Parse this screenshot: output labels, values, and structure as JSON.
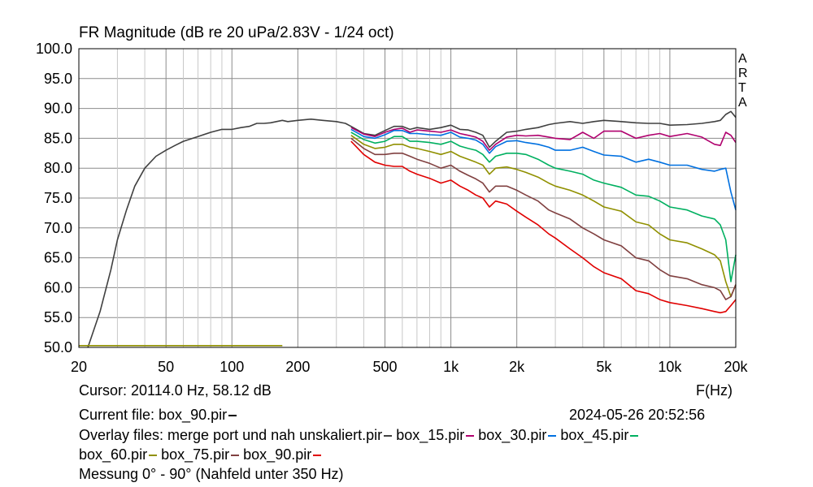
{
  "app_label": [
    "A",
    "R",
    "T",
    "A"
  ],
  "cursor_text": "Cursor: 20114.0 Hz, 58.12 dB",
  "x_unit": "F(Hz)",
  "current_file": {
    "label": "Current file: box_90.pir",
    "color": "#000000"
  },
  "timestamp": "2024-05-26  20:52:56",
  "overlay_label": "Overlay files: ",
  "overlays": [
    {
      "name": "merge port und nah unskaliert.pir",
      "color": "#404040"
    },
    {
      "name": "box_15.pir",
      "color": "#b0006e"
    },
    {
      "name": "box_30.pir",
      "color": "#0070e0"
    },
    {
      "name": "box_45.pir",
      "color": "#00b060"
    },
    {
      "name": "box_60.pir",
      "color": "#909000"
    },
    {
      "name": "box_75.pir",
      "color": "#804040"
    },
    {
      "name": "box_90.pir",
      "color": "#e00000"
    }
  ],
  "note": "Messung 0° - 90° (Nahfeld unter 350 Hz)",
  "chart_data": {
    "type": "line",
    "title": "FR Magnitude (dB re 20 uPa/2.83V - 1/24 oct)",
    "xlabel": "F(Hz)",
    "ylabel": "",
    "x_scale": "log",
    "xlim": [
      20,
      20000
    ],
    "ylim": [
      50,
      100
    ],
    "grid": true,
    "x_ticks": [
      {
        "value": 20,
        "label": "20"
      },
      {
        "value": 50,
        "label": "50"
      },
      {
        "value": 100,
        "label": "100"
      },
      {
        "value": 200,
        "label": "200"
      },
      {
        "value": 500,
        "label": "500"
      },
      {
        "value": 1000,
        "label": "1k"
      },
      {
        "value": 2000,
        "label": "2k"
      },
      {
        "value": 5000,
        "label": "5k"
      },
      {
        "value": 10000,
        "label": "10k"
      },
      {
        "value": 20000,
        "label": "20k"
      }
    ],
    "y_ticks": [
      {
        "value": 100,
        "label": "100.0"
      },
      {
        "value": 95,
        "label": "95.0"
      },
      {
        "value": 90,
        "label": "90.0"
      },
      {
        "value": 85,
        "label": "85.0"
      },
      {
        "value": 80,
        "label": "80.0"
      },
      {
        "value": 75,
        "label": "75.0"
      },
      {
        "value": 70,
        "label": "70.0"
      },
      {
        "value": 65,
        "label": "65.0"
      },
      {
        "value": 60,
        "label": "60.0"
      },
      {
        "value": 55,
        "label": "55.0"
      },
      {
        "value": 50,
        "label": "50.0"
      }
    ],
    "series": [
      {
        "name": "merge port und nah unskaliert.pir",
        "color": "#404040",
        "x": [
          22,
          25,
          28,
          30,
          33,
          36,
          40,
          45,
          50,
          55,
          60,
          70,
          80,
          90,
          100,
          110,
          120,
          130,
          140,
          150,
          170,
          180,
          200,
          230,
          260,
          300,
          330,
          350,
          400,
          450,
          500,
          550,
          600,
          650,
          700,
          800,
          900,
          1000,
          1100,
          1200,
          1300,
          1400,
          1500,
          1600,
          1800,
          2000,
          2200,
          2500,
          2800,
          3000,
          3500,
          4000,
          4500,
          5000,
          6000,
          7000,
          8000,
          9000,
          10000,
          12000,
          14000,
          16000,
          17000,
          18000,
          19000,
          20000
        ],
        "y": [
          50,
          56,
          63,
          68,
          73,
          77,
          80,
          82,
          83,
          83.8,
          84.5,
          85.3,
          86,
          86.5,
          86.5,
          86.8,
          87,
          87.5,
          87.5,
          87.6,
          88,
          87.8,
          88,
          88.2,
          88,
          87.8,
          87.5,
          87,
          85.8,
          85.5,
          86.3,
          87,
          87,
          86.5,
          86.8,
          86.5,
          86.8,
          87.2,
          86.5,
          86.4,
          86,
          85.5,
          83.5,
          84.5,
          86,
          86.2,
          86.5,
          86.8,
          87.3,
          87.5,
          87.8,
          87.5,
          87.8,
          88,
          87.8,
          87.6,
          87.5,
          87.5,
          87.2,
          87.3,
          87.5,
          87.8,
          88,
          89,
          89.5,
          88.5
        ]
      },
      {
        "name": "box_15.pir",
        "color": "#b0006e",
        "x": [
          350,
          400,
          450,
          500,
          550,
          600,
          650,
          700,
          800,
          900,
          1000,
          1100,
          1200,
          1300,
          1400,
          1500,
          1600,
          1800,
          2000,
          2200,
          2500,
          2800,
          3000,
          3500,
          4000,
          4500,
          5000,
          6000,
          7000,
          8000,
          9000,
          10000,
          12000,
          14000,
          16000,
          17000,
          18000,
          19000,
          20000
        ],
        "y": [
          86.8,
          85.7,
          85.3,
          86,
          86.5,
          86.7,
          86,
          86.4,
          86.2,
          86,
          86.4,
          85.8,
          85.5,
          85.2,
          84.5,
          83,
          84,
          85.2,
          85.5,
          85.4,
          85.5,
          85.2,
          85,
          84.8,
          86,
          85,
          86.2,
          86.2,
          85,
          85.5,
          85.8,
          85.3,
          85.8,
          85.2,
          84,
          83.8,
          86,
          85.5,
          84.3
        ]
      },
      {
        "name": "box_30.pir",
        "color": "#0070e0",
        "x": [
          350,
          400,
          450,
          500,
          550,
          600,
          650,
          700,
          800,
          900,
          1000,
          1100,
          1200,
          1300,
          1400,
          1500,
          1600,
          1800,
          2000,
          2200,
          2500,
          2800,
          3000,
          3500,
          4000,
          4500,
          5000,
          6000,
          7000,
          8000,
          9000,
          10000,
          12000,
          14000,
          16000,
          17000,
          18000,
          19000,
          20000
        ],
        "y": [
          86.5,
          85.3,
          85,
          85.6,
          86.3,
          86.3,
          85.8,
          85.8,
          85.6,
          85.5,
          86,
          85.2,
          85,
          84.7,
          84,
          82.5,
          83.6,
          84.5,
          84.6,
          84.3,
          84,
          83.5,
          83,
          83,
          83.5,
          82.8,
          82.2,
          82,
          81,
          81.5,
          81,
          80.5,
          80.5,
          79.8,
          79.5,
          79.8,
          80,
          76,
          73
        ]
      },
      {
        "name": "box_45.pir",
        "color": "#00b060",
        "x": [
          350,
          400,
          450,
          500,
          550,
          600,
          650,
          700,
          800,
          900,
          1000,
          1100,
          1200,
          1300,
          1400,
          1500,
          1600,
          1800,
          2000,
          2200,
          2500,
          2800,
          3000,
          3500,
          4000,
          4500,
          5000,
          6000,
          7000,
          8000,
          9000,
          10000,
          12000,
          14000,
          16000,
          17000,
          18000,
          19000,
          20000
        ],
        "y": [
          86,
          84.8,
          84.2,
          84.5,
          85.3,
          85.3,
          84.5,
          84.5,
          84.3,
          84,
          84.5,
          83.7,
          83.3,
          83,
          82.3,
          81,
          82,
          82.5,
          82.5,
          82.3,
          81.5,
          80.5,
          80,
          79.5,
          79,
          78,
          77.5,
          76.8,
          75.5,
          75.3,
          74.5,
          73.5,
          73,
          72,
          71.5,
          70.5,
          68,
          61,
          65.5
        ]
      },
      {
        "name": "box_60.pir",
        "color": "#909000",
        "x": [
          350,
          400,
          450,
          500,
          550,
          600,
          650,
          700,
          800,
          900,
          1000,
          1100,
          1200,
          1300,
          1400,
          1500,
          1600,
          1800,
          2000,
          2200,
          2500,
          2800,
          3000,
          3500,
          4000,
          4500,
          5000,
          6000,
          7000,
          8000,
          9000,
          10000,
          12000,
          14000,
          16000,
          17000,
          18000,
          19000,
          20000
        ],
        "y": [
          85.5,
          84,
          83.3,
          83.5,
          84,
          84,
          83.5,
          83.3,
          82.8,
          82.3,
          82.8,
          82,
          81.5,
          81,
          80.5,
          79,
          80,
          80.2,
          79.8,
          79.3,
          78.5,
          77.5,
          77,
          76.3,
          75.5,
          74.5,
          73.5,
          72.8,
          71,
          70.5,
          69,
          68,
          67.5,
          66.5,
          65.5,
          64.5,
          61,
          58.5,
          60.5
        ]
      },
      {
        "name": "box_75.pir",
        "color": "#804040",
        "x": [
          350,
          400,
          450,
          500,
          550,
          600,
          650,
          700,
          800,
          900,
          1000,
          1100,
          1200,
          1300,
          1400,
          1500,
          1600,
          1800,
          2000,
          2200,
          2500,
          2800,
          3000,
          3500,
          4000,
          4500,
          5000,
          6000,
          7000,
          8000,
          9000,
          10000,
          12000,
          14000,
          16000,
          17000,
          18000,
          19000,
          20000
        ],
        "y": [
          85,
          83.3,
          82.3,
          82.3,
          82.5,
          82.5,
          82,
          81.5,
          80.8,
          80,
          80.5,
          79.5,
          78.8,
          78.2,
          77.5,
          76,
          77,
          77,
          76.3,
          75.5,
          74.5,
          73,
          72.5,
          71.5,
          70,
          69,
          68,
          67,
          65,
          64.5,
          63,
          62,
          61.5,
          60.5,
          60,
          59.5,
          58,
          58.5,
          60.5
        ]
      },
      {
        "name": "box_90.pir",
        "color": "#e00000",
        "x": [
          350,
          400,
          450,
          500,
          550,
          600,
          650,
          700,
          800,
          900,
          1000,
          1100,
          1200,
          1300,
          1400,
          1500,
          1600,
          1800,
          2000,
          2200,
          2500,
          2800,
          3000,
          3500,
          4000,
          4500,
          5000,
          6000,
          7000,
          8000,
          9000,
          10000,
          12000,
          14000,
          16000,
          17000,
          18000,
          19000,
          20000
        ],
        "y": [
          84.5,
          82.3,
          81,
          80.5,
          80.3,
          80.3,
          79.5,
          79,
          78.3,
          77.5,
          78,
          77,
          76.3,
          75.5,
          75,
          73.5,
          74.5,
          74,
          72.8,
          71.8,
          70.5,
          69,
          68.3,
          66.5,
          65,
          63.5,
          62.5,
          61.5,
          59.5,
          59,
          58,
          57.5,
          57,
          56.5,
          56,
          55.8,
          56,
          57,
          58
        ]
      },
      {
        "name": "box_60.pir",
        "color": "#909000",
        "x": [
          20,
          170
        ],
        "y": [
          50.3,
          50.3
        ]
      }
    ]
  }
}
